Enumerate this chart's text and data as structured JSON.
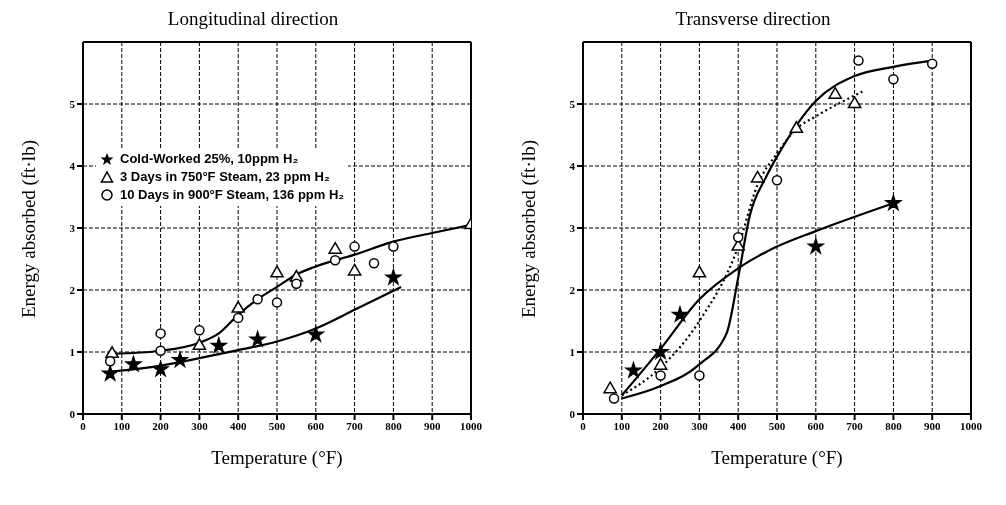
{
  "chart_data": [
    {
      "type": "scatter",
      "title": "Longitudinal direction",
      "xlabel": "Temperature (°F)",
      "ylabel": "Energy absorbed (ft·lb)",
      "xlim": [
        0,
        1000
      ],
      "ylim": [
        0,
        6
      ],
      "xticks": [
        0,
        100,
        200,
        300,
        400,
        500,
        600,
        700,
        800,
        900,
        1000
      ],
      "yticks": [
        0,
        1,
        2,
        3,
        4,
        5
      ],
      "grid": true,
      "legend": "top left",
      "series": [
        {
          "name": "Cold-Worked 25%, 10ppm H₂",
          "type": "scatter",
          "marker": "star",
          "color": "#000000",
          "x": [
            70,
            130,
            200,
            250,
            350,
            450,
            600,
            800
          ],
          "values": [
            0.65,
            0.8,
            0.72,
            0.87,
            1.1,
            1.2,
            1.28,
            2.2
          ]
        },
        {
          "name": "3 Days in 750°F Steam, 23 ppm H₂",
          "type": "scatter",
          "marker": "triangle",
          "color": "#000000",
          "x": [
            75,
            300,
            400,
            500,
            550,
            650,
            700,
            1000
          ],
          "values": [
            0.97,
            1.1,
            1.7,
            2.27,
            2.2,
            2.65,
            2.3,
            3.05
          ]
        },
        {
          "name": "10 Days in 900°F Steam, 136 ppm H₂",
          "type": "scatter",
          "marker": "circle",
          "color": "#000000",
          "x": [
            70,
            200,
            200,
            300,
            400,
            450,
            500,
            550,
            650,
            700,
            750,
            800
          ],
          "values": [
            0.85,
            1.3,
            1.02,
            1.35,
            1.55,
            1.85,
            1.8,
            2.1,
            2.48,
            2.7,
            2.43,
            2.7
          ]
        },
        {
          "type": "line",
          "marker": "none",
          "line_style": "solid",
          "color": "#000000",
          "x": [
            70,
            200,
            300,
            400,
            500,
            600,
            700,
            820
          ],
          "values": [
            0.68,
            0.78,
            0.9,
            1.03,
            1.17,
            1.38,
            1.68,
            2.05
          ]
        },
        {
          "type": "line",
          "marker": "none",
          "line_style": "solid",
          "color": "#000000",
          "x": [
            75,
            200,
            300,
            350,
            400,
            450,
            500,
            550,
            600,
            700,
            800,
            900,
            1000
          ],
          "values": [
            0.97,
            1.02,
            1.15,
            1.3,
            1.6,
            1.85,
            2.05,
            2.25,
            2.38,
            2.57,
            2.78,
            2.92,
            3.05
          ]
        }
      ]
    },
    {
      "type": "scatter",
      "title": "Transverse direction",
      "xlabel": "Temperature (°F)",
      "ylabel": "Energy absorbed (ft·lb)",
      "xlim": [
        0,
        1000
      ],
      "ylim": [
        0,
        6
      ],
      "xticks": [
        0,
        100,
        200,
        300,
        400,
        500,
        600,
        700,
        800,
        900,
        1000
      ],
      "yticks": [
        0,
        1,
        2,
        3,
        4,
        5
      ],
      "grid": true,
      "series": [
        {
          "type": "scatter",
          "marker": "star",
          "color": "#000000",
          "x": [
            130,
            200,
            250,
            600,
            800
          ],
          "values": [
            0.7,
            1.0,
            1.6,
            2.7,
            3.4
          ]
        },
        {
          "type": "scatter",
          "marker": "triangle",
          "color": "#000000",
          "x": [
            70,
            200,
            300,
            400,
            450,
            550,
            650,
            700
          ],
          "values": [
            0.4,
            0.78,
            2.27,
            2.7,
            3.8,
            4.6,
            5.15,
            5.0
          ]
        },
        {
          "type": "scatter",
          "marker": "circle",
          "color": "#000000",
          "x": [
            80,
            200,
            300,
            400,
            500,
            710,
            800,
            900
          ],
          "values": [
            0.25,
            0.62,
            0.62,
            2.85,
            3.77,
            5.7,
            5.4,
            5.65
          ]
        },
        {
          "type": "line",
          "marker": "none",
          "line_style": "solid",
          "color": "#000000",
          "x": [
            100,
            200,
            300,
            400,
            500,
            600,
            800
          ],
          "values": [
            0.3,
            1.05,
            1.85,
            2.35,
            2.7,
            2.95,
            3.4
          ]
        },
        {
          "type": "line",
          "marker": "none",
          "line_style": "dotted",
          "color": "#000000",
          "x": [
            100,
            200,
            300,
            400,
            450,
            500,
            550,
            600,
            720
          ],
          "values": [
            0.3,
            0.75,
            1.5,
            2.7,
            3.7,
            4.2,
            4.6,
            4.8,
            5.2
          ]
        },
        {
          "type": "line",
          "marker": "none",
          "line_style": "solid",
          "color": "#000000",
          "x": [
            100,
            200,
            300,
            370,
            400,
            430,
            470,
            500,
            600,
            700,
            800,
            900
          ],
          "values": [
            0.25,
            0.45,
            0.8,
            1.3,
            2.2,
            3.2,
            3.8,
            4.15,
            5.05,
            5.45,
            5.6,
            5.7
          ]
        }
      ]
    }
  ]
}
